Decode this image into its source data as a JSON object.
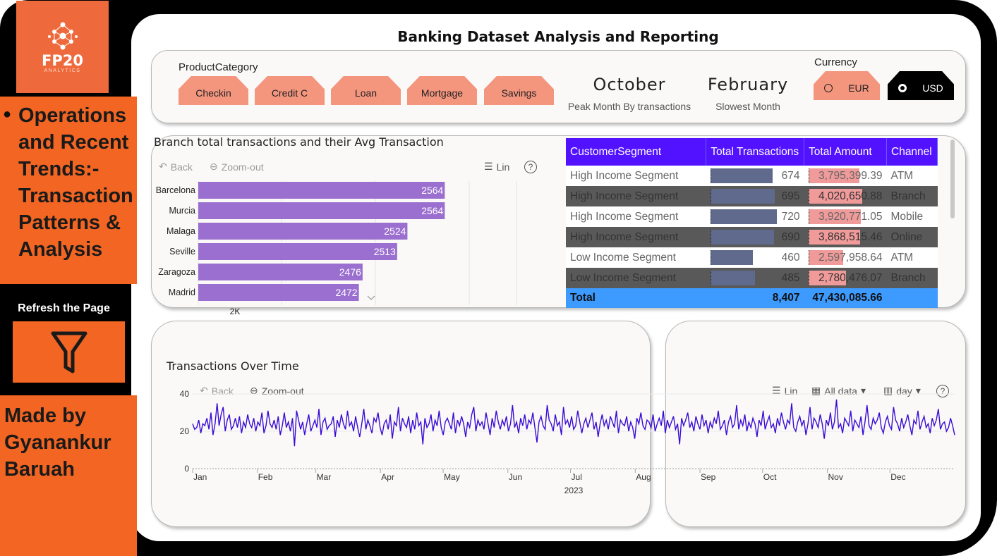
{
  "logo": {
    "name": "FP20",
    "sub": "ANALYTICS"
  },
  "sidebar": {
    "topic": "Operations and Recent Trends:- Transaction Patterns & Analysis",
    "refresh_label": "Refresh the Page",
    "made_by": "Made by Gyanankur Baruah"
  },
  "title": "Banking Dataset Analysis and Reporting",
  "filters": {
    "product_label": "ProductCategory",
    "products": [
      "Checkin",
      "Credit C",
      "Loan",
      "Mortgage",
      "Savings"
    ],
    "currency_label": "Currency",
    "currencies": [
      {
        "label": "EUR",
        "selected": false
      },
      {
        "label": "USD",
        "selected": true
      }
    ]
  },
  "kpis": [
    {
      "value": "October",
      "label": "Peak Month By transactions"
    },
    {
      "value": "February",
      "label": "Slowest Month"
    }
  ],
  "branch": {
    "title": "Branch total transactions and their Avg Transaction",
    "tools": {
      "back": "Back",
      "zoom": "Zoom-out",
      "lin": "Lin",
      "help": "?"
    },
    "axis_tick": "2K"
  },
  "segment_table": {
    "headers": [
      "CustomerSegment",
      "Total Transactions",
      "Total Amount",
      "Channel"
    ],
    "rows": [
      {
        "segment": "High Income Segment",
        "transactions": "674",
        "amount": "3,795,399.39",
        "channel": "ATM",
        "t": 674,
        "a": 3795399.39
      },
      {
        "segment": "High Income Segment",
        "transactions": "695",
        "amount": "4,020,650.88",
        "channel": "Branch",
        "t": 695,
        "a": 4020650.88
      },
      {
        "segment": "High Income Segment",
        "transactions": "720",
        "amount": "3,920,771.05",
        "channel": "Mobile",
        "t": 720,
        "a": 3920771.05
      },
      {
        "segment": "High Income Segment",
        "transactions": "690",
        "amount": "3,868,515.46",
        "channel": "Online",
        "t": 690,
        "a": 3868515.46
      },
      {
        "segment": "Low Income Segment",
        "transactions": "460",
        "amount": "2,597,958.64",
        "channel": "ATM",
        "t": 460,
        "a": 2597958.64
      },
      {
        "segment": "Low Income Segment",
        "transactions": "485",
        "amount": "2,780,476.07",
        "channel": "Branch",
        "t": 485,
        "a": 2780476.07
      }
    ],
    "total": {
      "label": "Total",
      "transactions": "8,407",
      "amount": "47,430,085.66"
    }
  },
  "timeline": {
    "title": "Transactions Over Time",
    "tools": {
      "back": "Back",
      "zoom": "Zoom-out",
      "lin": "Lin",
      "range": "All data",
      "granularity": "day",
      "help": "?"
    },
    "year_label": "2023"
  },
  "colors": {
    "accent_orange": "#f26522",
    "bar_purple": "#9b6fd0",
    "header_blue": "#5211ff",
    "total_blue": "#3d9bff",
    "line": "#3a0bd6"
  },
  "chart_data": [
    {
      "type": "bar",
      "orientation": "horizontal",
      "categories": [
        "Barcelona",
        "Murcia",
        "Malaga",
        "Seville",
        "Zaragoza",
        "Madrid"
      ],
      "values": [
        2564,
        2564,
        2524,
        2513,
        2476,
        2472
      ],
      "xlim": [
        2300,
        2600
      ],
      "x_tick_labels": [
        "2K"
      ]
    },
    {
      "type": "line",
      "x_start": "2023-01-01",
      "x_end": "2023-12-31",
      "granularity": "day",
      "x_tick_labels": [
        "Jan",
        "Feb",
        "Mar",
        "Apr",
        "May",
        "Jun",
        "Jul",
        "Aug",
        "Sep",
        "Oct",
        "Nov",
        "Dec"
      ],
      "y_ticks": [
        0,
        20,
        40
      ],
      "ylim": [
        0,
        40
      ],
      "values": [
        24,
        21,
        22,
        26,
        19,
        24,
        23,
        27,
        21,
        30,
        18,
        24,
        35,
        23,
        29,
        33,
        20,
        26,
        29,
        21,
        23,
        27,
        22,
        28,
        19,
        25,
        22,
        29,
        24,
        22,
        27,
        20,
        25,
        23,
        30,
        19,
        23,
        31,
        24,
        22,
        26,
        21,
        28,
        18,
        23,
        30,
        22,
        25,
        20,
        27,
        12,
        31,
        26,
        21,
        25,
        18,
        24,
        29,
        20,
        23,
        26,
        22,
        32,
        18,
        25,
        27,
        21,
        23,
        24,
        28,
        17,
        26,
        22,
        29,
        24,
        21,
        31,
        23,
        25,
        20,
        28,
        22,
        17,
        24,
        32,
        21,
        26,
        23,
        19,
        27,
        25,
        30,
        22,
        18,
        24,
        26,
        21,
        29,
        16,
        25,
        23,
        33,
        20,
        27,
        24,
        22,
        28,
        19,
        26,
        21,
        30,
        23,
        25,
        13,
        27,
        22,
        24,
        29,
        20,
        26,
        23,
        31,
        22,
        18,
        25,
        27,
        24,
        21,
        30,
        19,
        26,
        23,
        28,
        24,
        17,
        25,
        22,
        29,
        33,
        20,
        26,
        23,
        25,
        21,
        30,
        24,
        18,
        27,
        22,
        31,
        25,
        21,
        26,
        23,
        28,
        20,
        24,
        34,
        22,
        25,
        19,
        27,
        23,
        29,
        21,
        26,
        24,
        30,
        22,
        14,
        25,
        28,
        23,
        21,
        34,
        26,
        24,
        20,
        29,
        23,
        25,
        18,
        33,
        24,
        26,
        22,
        28,
        21,
        23,
        31,
        25,
        19,
        24,
        27,
        22,
        26,
        30,
        21,
        25,
        17,
        24,
        29,
        23,
        26,
        21,
        28,
        25,
        22,
        31,
        19,
        26,
        24,
        23,
        28,
        20,
        25,
        22,
        16,
        27,
        24,
        30,
        23,
        21,
        26,
        25,
        22,
        29,
        20,
        24,
        27,
        23,
        31,
        19,
        26,
        22,
        25,
        28,
        21,
        24,
        13,
        27,
        23,
        26,
        30,
        22,
        25,
        20,
        28,
        24,
        21,
        29,
        23,
        26,
        19,
        25,
        22,
        27,
        24,
        31,
        21,
        23,
        26,
        18,
        25,
        28,
        22,
        24,
        34,
        21,
        26,
        23,
        29,
        20,
        25,
        22,
        27,
        24,
        17,
        26,
        23,
        31,
        21,
        25,
        28,
        22,
        24,
        19,
        27,
        23,
        30,
        25,
        21,
        26,
        24,
        35,
        22,
        20,
        25,
        28,
        23,
        26,
        18,
        24,
        33,
        21,
        27,
        25,
        22,
        29,
        24,
        16,
        26,
        23,
        30,
        21,
        25,
        37,
        22,
        24,
        19,
        27,
        25,
        23,
        31,
        20,
        26,
        24,
        22,
        28,
        18,
        25,
        34,
        23,
        21,
        27,
        24,
        26,
        30,
        22,
        19,
        25,
        28,
        23,
        21,
        33,
        26,
        24,
        20,
        27,
        22,
        25,
        29,
        23,
        18,
        26,
        24,
        31,
        21,
        25,
        28,
        22,
        24,
        19,
        27,
        23,
        26,
        32,
        21,
        24,
        25,
        20,
        22,
        27,
        23,
        18
      ]
    }
  ]
}
